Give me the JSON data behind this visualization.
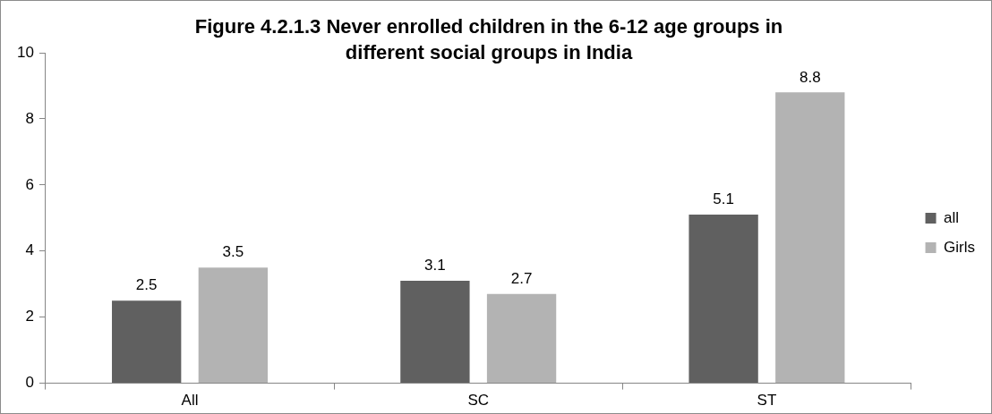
{
  "chart_data": {
    "type": "bar",
    "title": "Figure 4.2.1.3 Never enrolled children in the 6-12 age groups in different social groups in India",
    "categories": [
      "All",
      "SC",
      "ST"
    ],
    "series": [
      {
        "name": "all",
        "color": "#606060",
        "values": [
          2.5,
          3.1,
          5.1
        ]
      },
      {
        "name": "Girls",
        "color": "#b3b3b3",
        "values": [
          3.5,
          2.7,
          8.8
        ]
      }
    ],
    "ylim": [
      0,
      10
    ],
    "yticks": [
      0,
      2,
      4,
      6,
      8,
      10
    ],
    "grid": false,
    "legend": "right",
    "data_labels": true
  }
}
